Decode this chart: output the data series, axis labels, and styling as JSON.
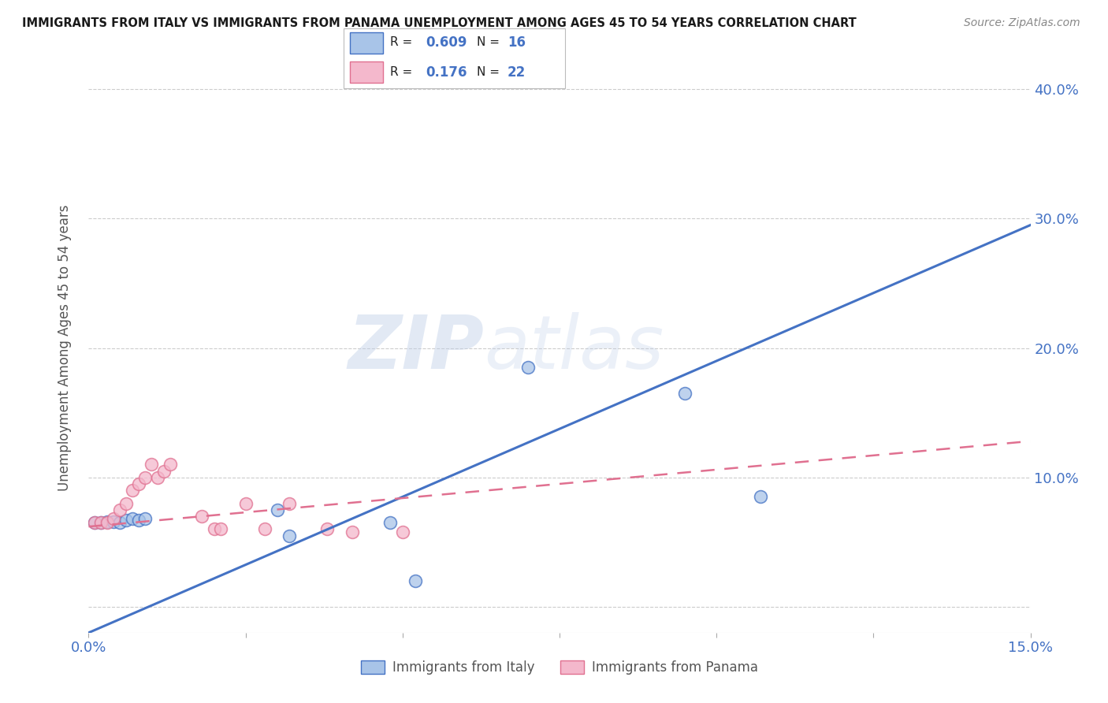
{
  "title": "IMMIGRANTS FROM ITALY VS IMMIGRANTS FROM PANAMA UNEMPLOYMENT AMONG AGES 45 TO 54 YEARS CORRELATION CHART",
  "source": "Source: ZipAtlas.com",
  "ylabel": "Unemployment Among Ages 45 to 54 years",
  "xlim": [
    0.0,
    0.15
  ],
  "ylim": [
    -0.02,
    0.42
  ],
  "italy_color": "#A8C4E8",
  "italy_edge_color": "#4472C4",
  "panama_color": "#F4B8CC",
  "panama_edge_color": "#E07090",
  "italy_R": "0.609",
  "italy_N": "16",
  "panama_R": "0.176",
  "panama_N": "22",
  "italy_line_color": "#4472C4",
  "panama_line_color": "#E07090",
  "watermark_zip": "ZIP",
  "watermark_atlas": "atlas",
  "background_color": "#FFFFFF",
  "grid_color": "#CCCCCC",
  "italy_x": [
    0.001,
    0.002,
    0.003,
    0.004,
    0.005,
    0.006,
    0.007,
    0.008,
    0.009,
    0.03,
    0.032,
    0.048,
    0.052,
    0.07,
    0.095,
    0.107
  ],
  "italy_y": [
    0.065,
    0.065,
    0.066,
    0.066,
    0.065,
    0.067,
    0.068,
    0.067,
    0.068,
    0.075,
    0.055,
    0.065,
    0.02,
    0.185,
    0.165,
    0.085
  ],
  "panama_x": [
    0.001,
    0.002,
    0.003,
    0.004,
    0.005,
    0.006,
    0.007,
    0.008,
    0.009,
    0.01,
    0.011,
    0.012,
    0.013,
    0.018,
    0.02,
    0.021,
    0.025,
    0.028,
    0.032,
    0.038,
    0.042,
    0.05
  ],
  "panama_y": [
    0.065,
    0.065,
    0.065,
    0.068,
    0.075,
    0.08,
    0.09,
    0.095,
    0.1,
    0.11,
    0.1,
    0.105,
    0.11,
    0.07,
    0.06,
    0.06,
    0.08,
    0.06,
    0.08,
    0.06,
    0.058,
    0.058
  ],
  "italy_line_x0": 0.0,
  "italy_line_y0": -0.02,
  "italy_line_x1": 0.15,
  "italy_line_y1": 0.295,
  "panama_line_x0": 0.0,
  "panama_line_y0": 0.062,
  "panama_line_x1": 0.15,
  "panama_line_y1": 0.128
}
